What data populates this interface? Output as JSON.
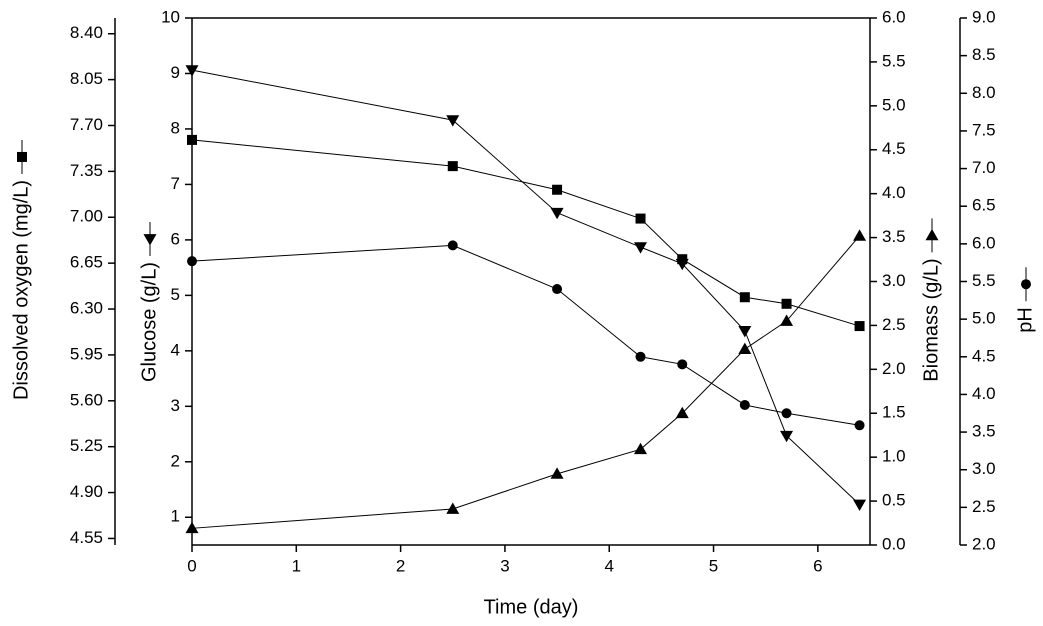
{
  "chart_data": {
    "type": "line",
    "x": [
      0,
      2.5,
      3.5,
      4.3,
      4.7,
      5.3,
      5.7,
      6.4
    ],
    "xlim": [
      0,
      6.5
    ],
    "xticks": [
      0,
      1,
      2,
      3,
      4,
      5,
      6
    ],
    "xlabel": "Time (day)",
    "series": [
      {
        "name": "Dissolved oxygen (mg/L)",
        "marker": "square",
        "color": "#000000",
        "values": [
          7.59,
          7.39,
          7.21,
          6.99,
          6.68,
          6.39,
          6.34,
          6.17
        ],
        "ylim": [
          4.5,
          8.52
        ],
        "yticks": [
          {
            "value": 4.55,
            "label": "4.55"
          },
          {
            "value": 4.9,
            "label": "4.90"
          },
          {
            "value": 5.25,
            "label": "5.25"
          },
          {
            "value": 5.6,
            "label": "5.60"
          },
          {
            "value": 5.95,
            "label": "5.95"
          },
          {
            "value": 6.3,
            "label": "6.30"
          },
          {
            "value": 6.65,
            "label": "6.65"
          },
          {
            "value": 7.0,
            "label": "7.00"
          },
          {
            "value": 7.35,
            "label": "7.35"
          },
          {
            "value": 7.7,
            "label": "7.70"
          },
          {
            "value": 8.05,
            "label": "8.05"
          },
          {
            "value": 8.4,
            "label": "8.40"
          }
        ]
      },
      {
        "name": "Glucose (g/L)",
        "marker": "triangle-down",
        "color": "#000000",
        "values": [
          9.06,
          8.16,
          6.49,
          5.87,
          5.57,
          4.36,
          2.47,
          1.23
        ],
        "ylim": [
          0.5,
          10
        ],
        "yticks": [
          1,
          2,
          3,
          4,
          5,
          6,
          7,
          8,
          9,
          10
        ]
      },
      {
        "name": "Biomass (g/L)",
        "marker": "triangle-up",
        "color": "#000000",
        "values": [
          0.19,
          0.41,
          0.81,
          1.09,
          1.5,
          2.23,
          2.55,
          3.52
        ],
        "ylim": [
          0,
          6
        ],
        "yticks": [
          {
            "value": 0,
            "label": "0.0"
          },
          0.5,
          {
            "value": 1,
            "label": "1.0"
          },
          1.5,
          {
            "value": 2,
            "label": "2.0"
          },
          2.5,
          {
            "value": 3,
            "label": "3.0"
          },
          3.5,
          {
            "value": 4,
            "label": "4.0"
          },
          4.5,
          {
            "value": 5,
            "label": "5.0"
          },
          5.5,
          {
            "value": 6,
            "label": "6.0"
          }
        ]
      },
      {
        "name": "pH",
        "marker": "circle",
        "color": "#000000",
        "values": [
          5.77,
          5.98,
          5.4,
          4.5,
          4.4,
          3.86,
          3.75,
          3.59
        ],
        "ylim": [
          2,
          9
        ],
        "yticks": [
          {
            "value": 2,
            "label": "2.0"
          },
          2.5,
          {
            "value": 3,
            "label": "3.0"
          },
          3.5,
          {
            "value": 4,
            "label": "4.0"
          },
          4.5,
          {
            "value": 5,
            "label": "5.0"
          },
          5.5,
          {
            "value": 6,
            "label": "6.0"
          },
          6.5,
          {
            "value": 7,
            "label": "7.0"
          },
          7.5,
          {
            "value": 8,
            "label": "8.0"
          },
          8.5,
          {
            "value": 9,
            "label": "9.0"
          }
        ]
      }
    ]
  }
}
